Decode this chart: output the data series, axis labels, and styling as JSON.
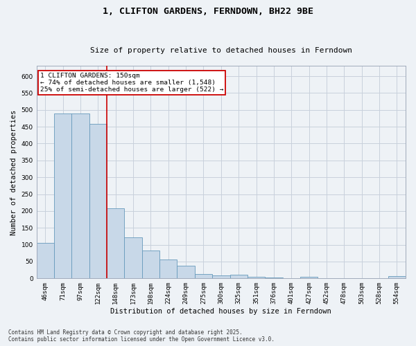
{
  "title": "1, CLIFTON GARDENS, FERNDOWN, BH22 9BE",
  "subtitle": "Size of property relative to detached houses in Ferndown",
  "xlabel": "Distribution of detached houses by size in Ferndown",
  "ylabel": "Number of detached properties",
  "footer": "Contains HM Land Registry data © Crown copyright and database right 2025.\nContains public sector information licensed under the Open Government Licence v3.0.",
  "categories": [
    "46sqm",
    "71sqm",
    "97sqm",
    "122sqm",
    "148sqm",
    "173sqm",
    "198sqm",
    "224sqm",
    "249sqm",
    "275sqm",
    "300sqm",
    "325sqm",
    "351sqm",
    "376sqm",
    "401sqm",
    "427sqm",
    "452sqm",
    "478sqm",
    "503sqm",
    "528sqm",
    "554sqm"
  ],
  "values": [
    105,
    490,
    490,
    458,
    207,
    121,
    82,
    57,
    38,
    13,
    8,
    10,
    5,
    3,
    0,
    5,
    0,
    0,
    0,
    0,
    6
  ],
  "bar_color": "#c8d8e8",
  "bar_edge_color": "#6699bb",
  "grid_color": "#c8d0dc",
  "background_color": "#eef2f6",
  "red_line_index": 4,
  "annotation_text": "1 CLIFTON GARDENS: 150sqm\n← 74% of detached houses are smaller (1,548)\n25% of semi-detached houses are larger (522) →",
  "annotation_box_color": "#ffffff",
  "annotation_box_edge_color": "#cc0000",
  "ylim": [
    0,
    630
  ],
  "yticks": [
    0,
    50,
    100,
    150,
    200,
    250,
    300,
    350,
    400,
    450,
    500,
    550,
    600
  ],
  "title_fontsize": 9.5,
  "subtitle_fontsize": 8,
  "tick_fontsize": 6.5,
  "label_fontsize": 7.5,
  "annotation_fontsize": 6.8,
  "footer_fontsize": 5.5
}
